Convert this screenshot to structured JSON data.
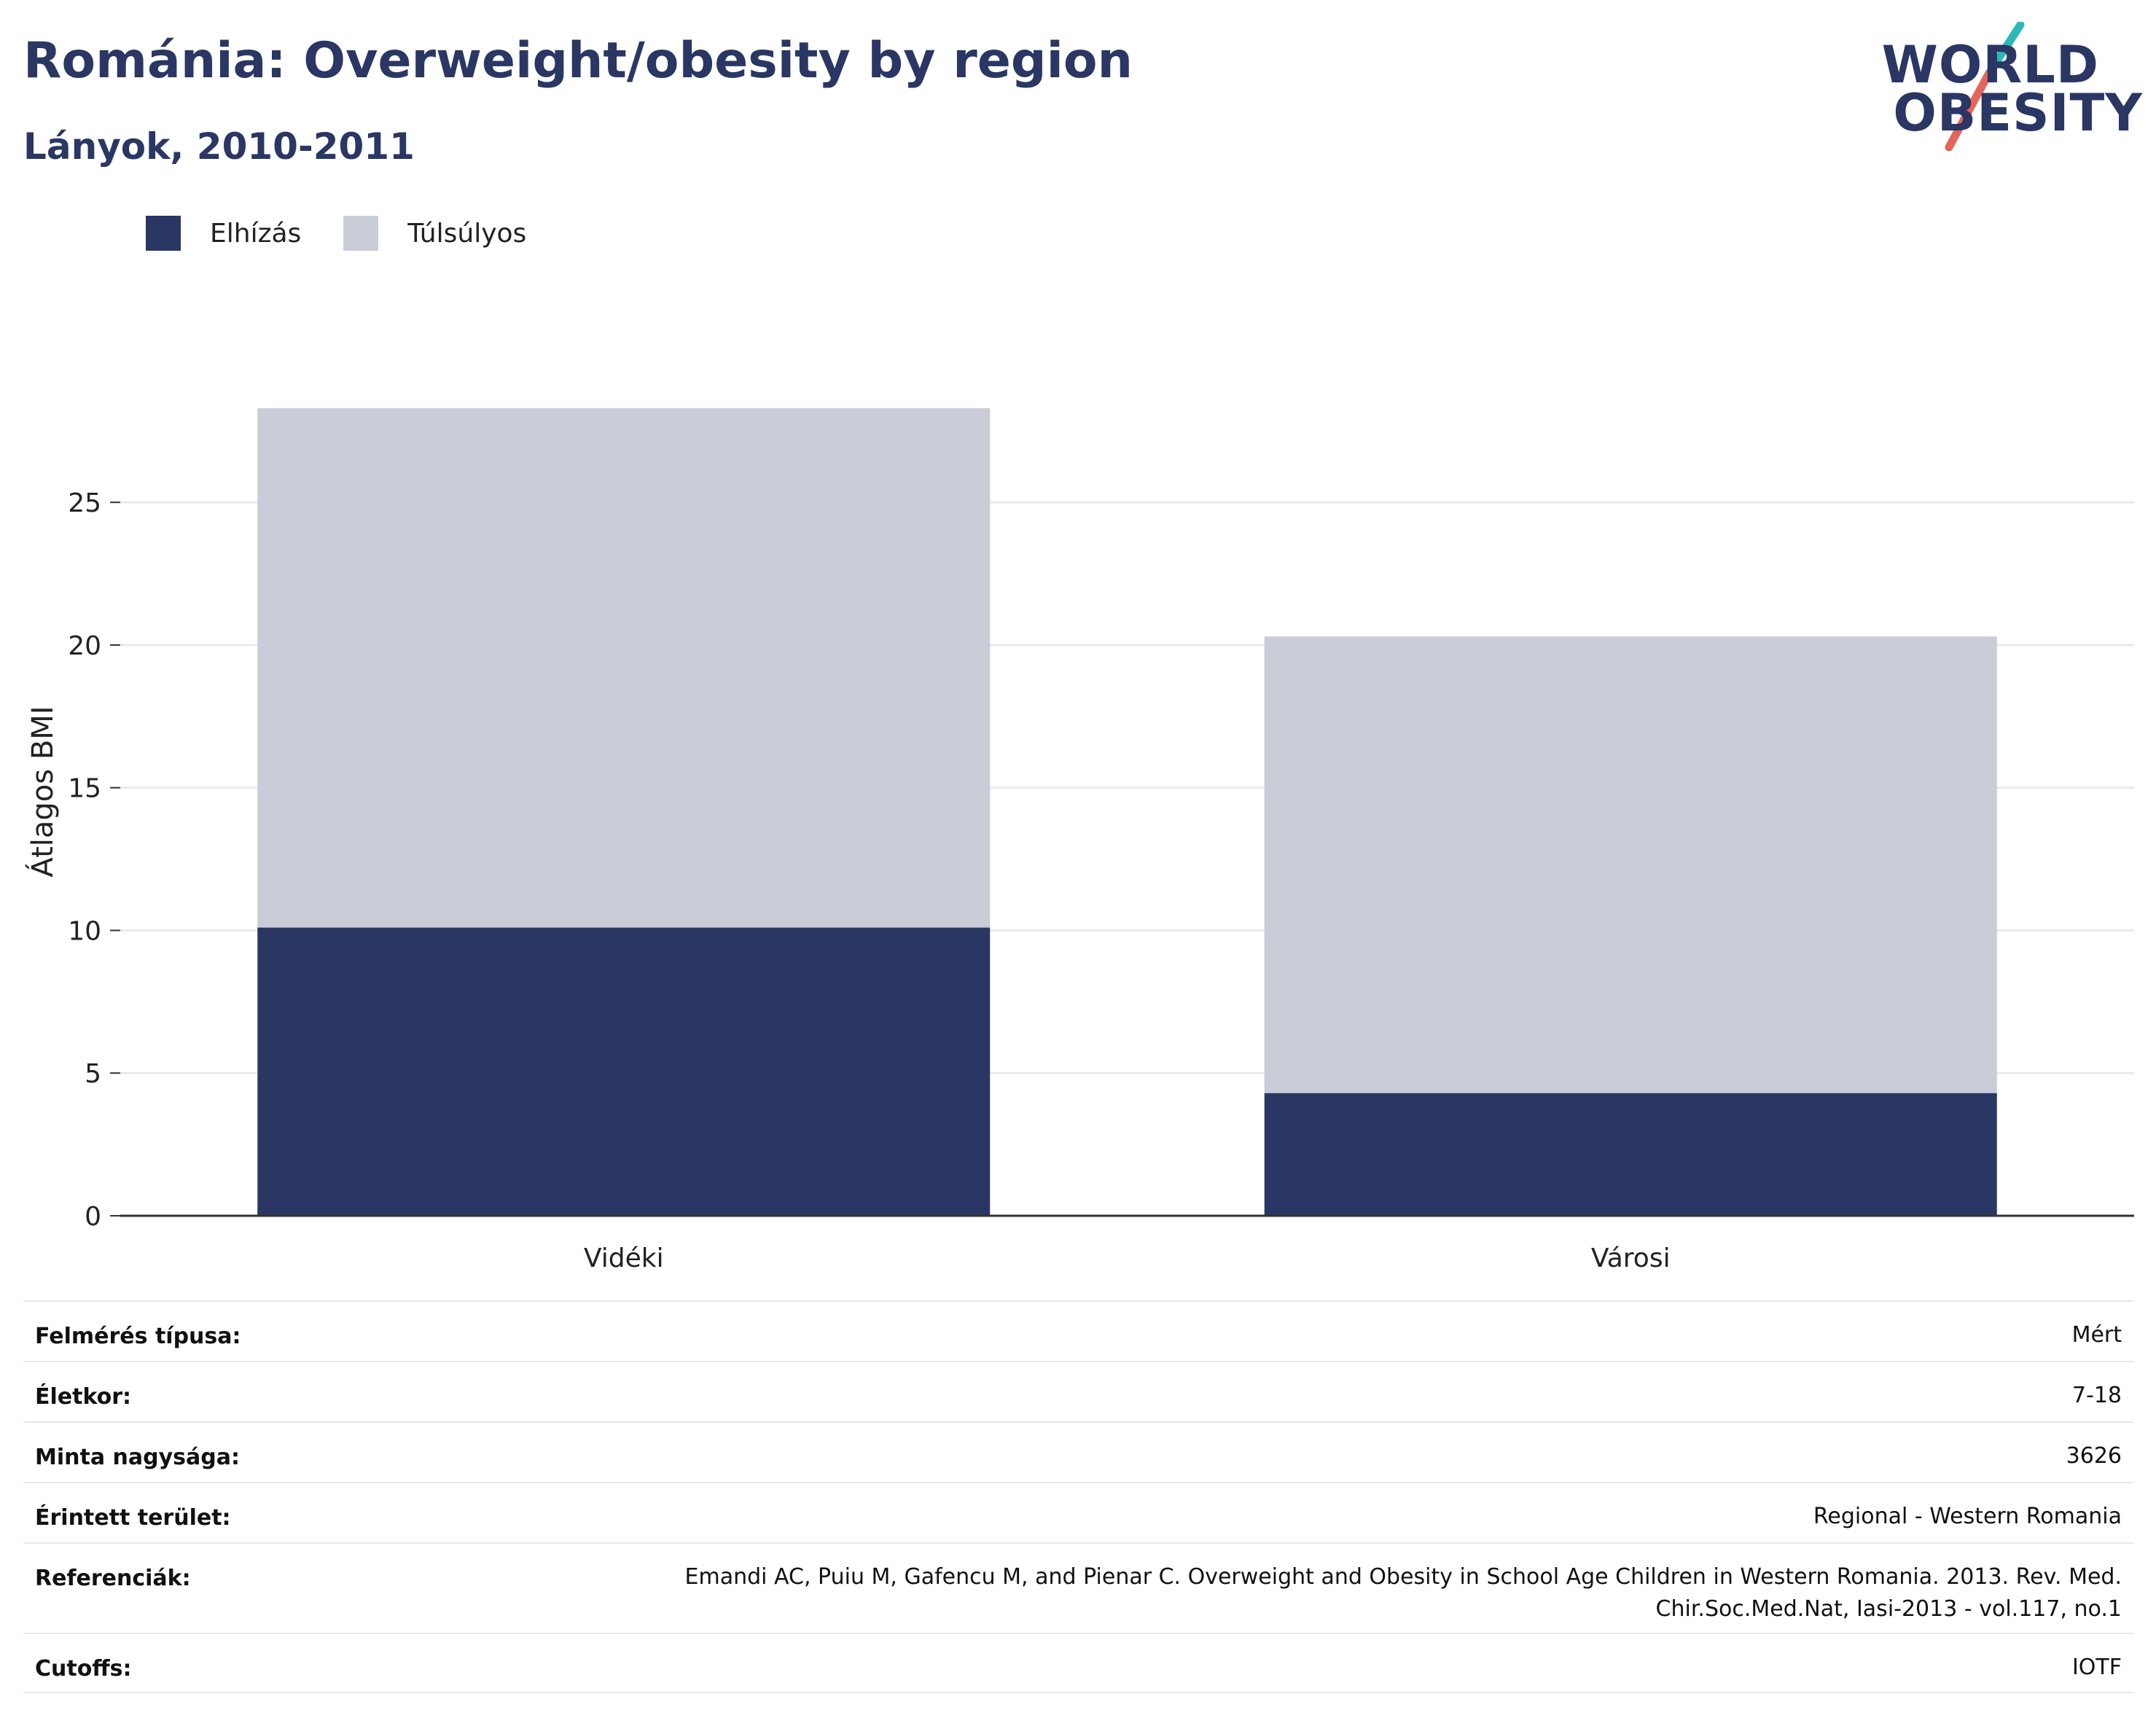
{
  "header": {
    "title": "Románia: Overweight/obesity by region",
    "subtitle": "Lányok, 2010-2011"
  },
  "logo": {
    "line1": "WORLD",
    "line2": "OBESITY",
    "colors": {
      "teal": "#2bb9b6",
      "coral": "#e4655a",
      "navy": "#2a3663"
    }
  },
  "legend": [
    {
      "label": "Elhízás",
      "color": "#2a3663"
    },
    {
      "label": "Túlsúlyos",
      "color": "#cacdd8"
    }
  ],
  "chart_data": {
    "type": "bar",
    "stacked": true,
    "categories": [
      "Vidéki",
      "Városi"
    ],
    "series": [
      {
        "name": "Elhízás",
        "color": "#2a3663",
        "values": [
          10.1,
          4.3
        ]
      },
      {
        "name": "Túlsúlyos",
        "color": "#cacdd8",
        "values": [
          18.2,
          16.0
        ]
      }
    ],
    "ylabel": "Átlagos BMI",
    "xlabel": "",
    "ylim": [
      0,
      28.3
    ],
    "yticks": [
      0,
      5,
      10,
      15,
      20,
      25
    ],
    "grid": true,
    "legend_position": "top-left"
  },
  "info": [
    {
      "label": "Felmérés típusa:",
      "value": [
        "Mért"
      ]
    },
    {
      "label": "Életkor:",
      "value": [
        "7-18"
      ]
    },
    {
      "label": "Minta nagysága:",
      "value": [
        "3626"
      ]
    },
    {
      "label": "Érintett terület:",
      "value": [
        "Regional - Western Romania"
      ]
    },
    {
      "label": "Referenciák:",
      "value": [
        "Emandi AC, Puiu M, Gafencu M, and Pienar C. Overweight and Obesity in School Age Children in Western Romania. 2013. Rev. Med.",
        "Chir.Soc.Med.Nat, Iasi-2013 - vol.117, no.1"
      ]
    },
    {
      "label": "Cutoffs:",
      "value": [
        "IOTF"
      ]
    }
  ]
}
